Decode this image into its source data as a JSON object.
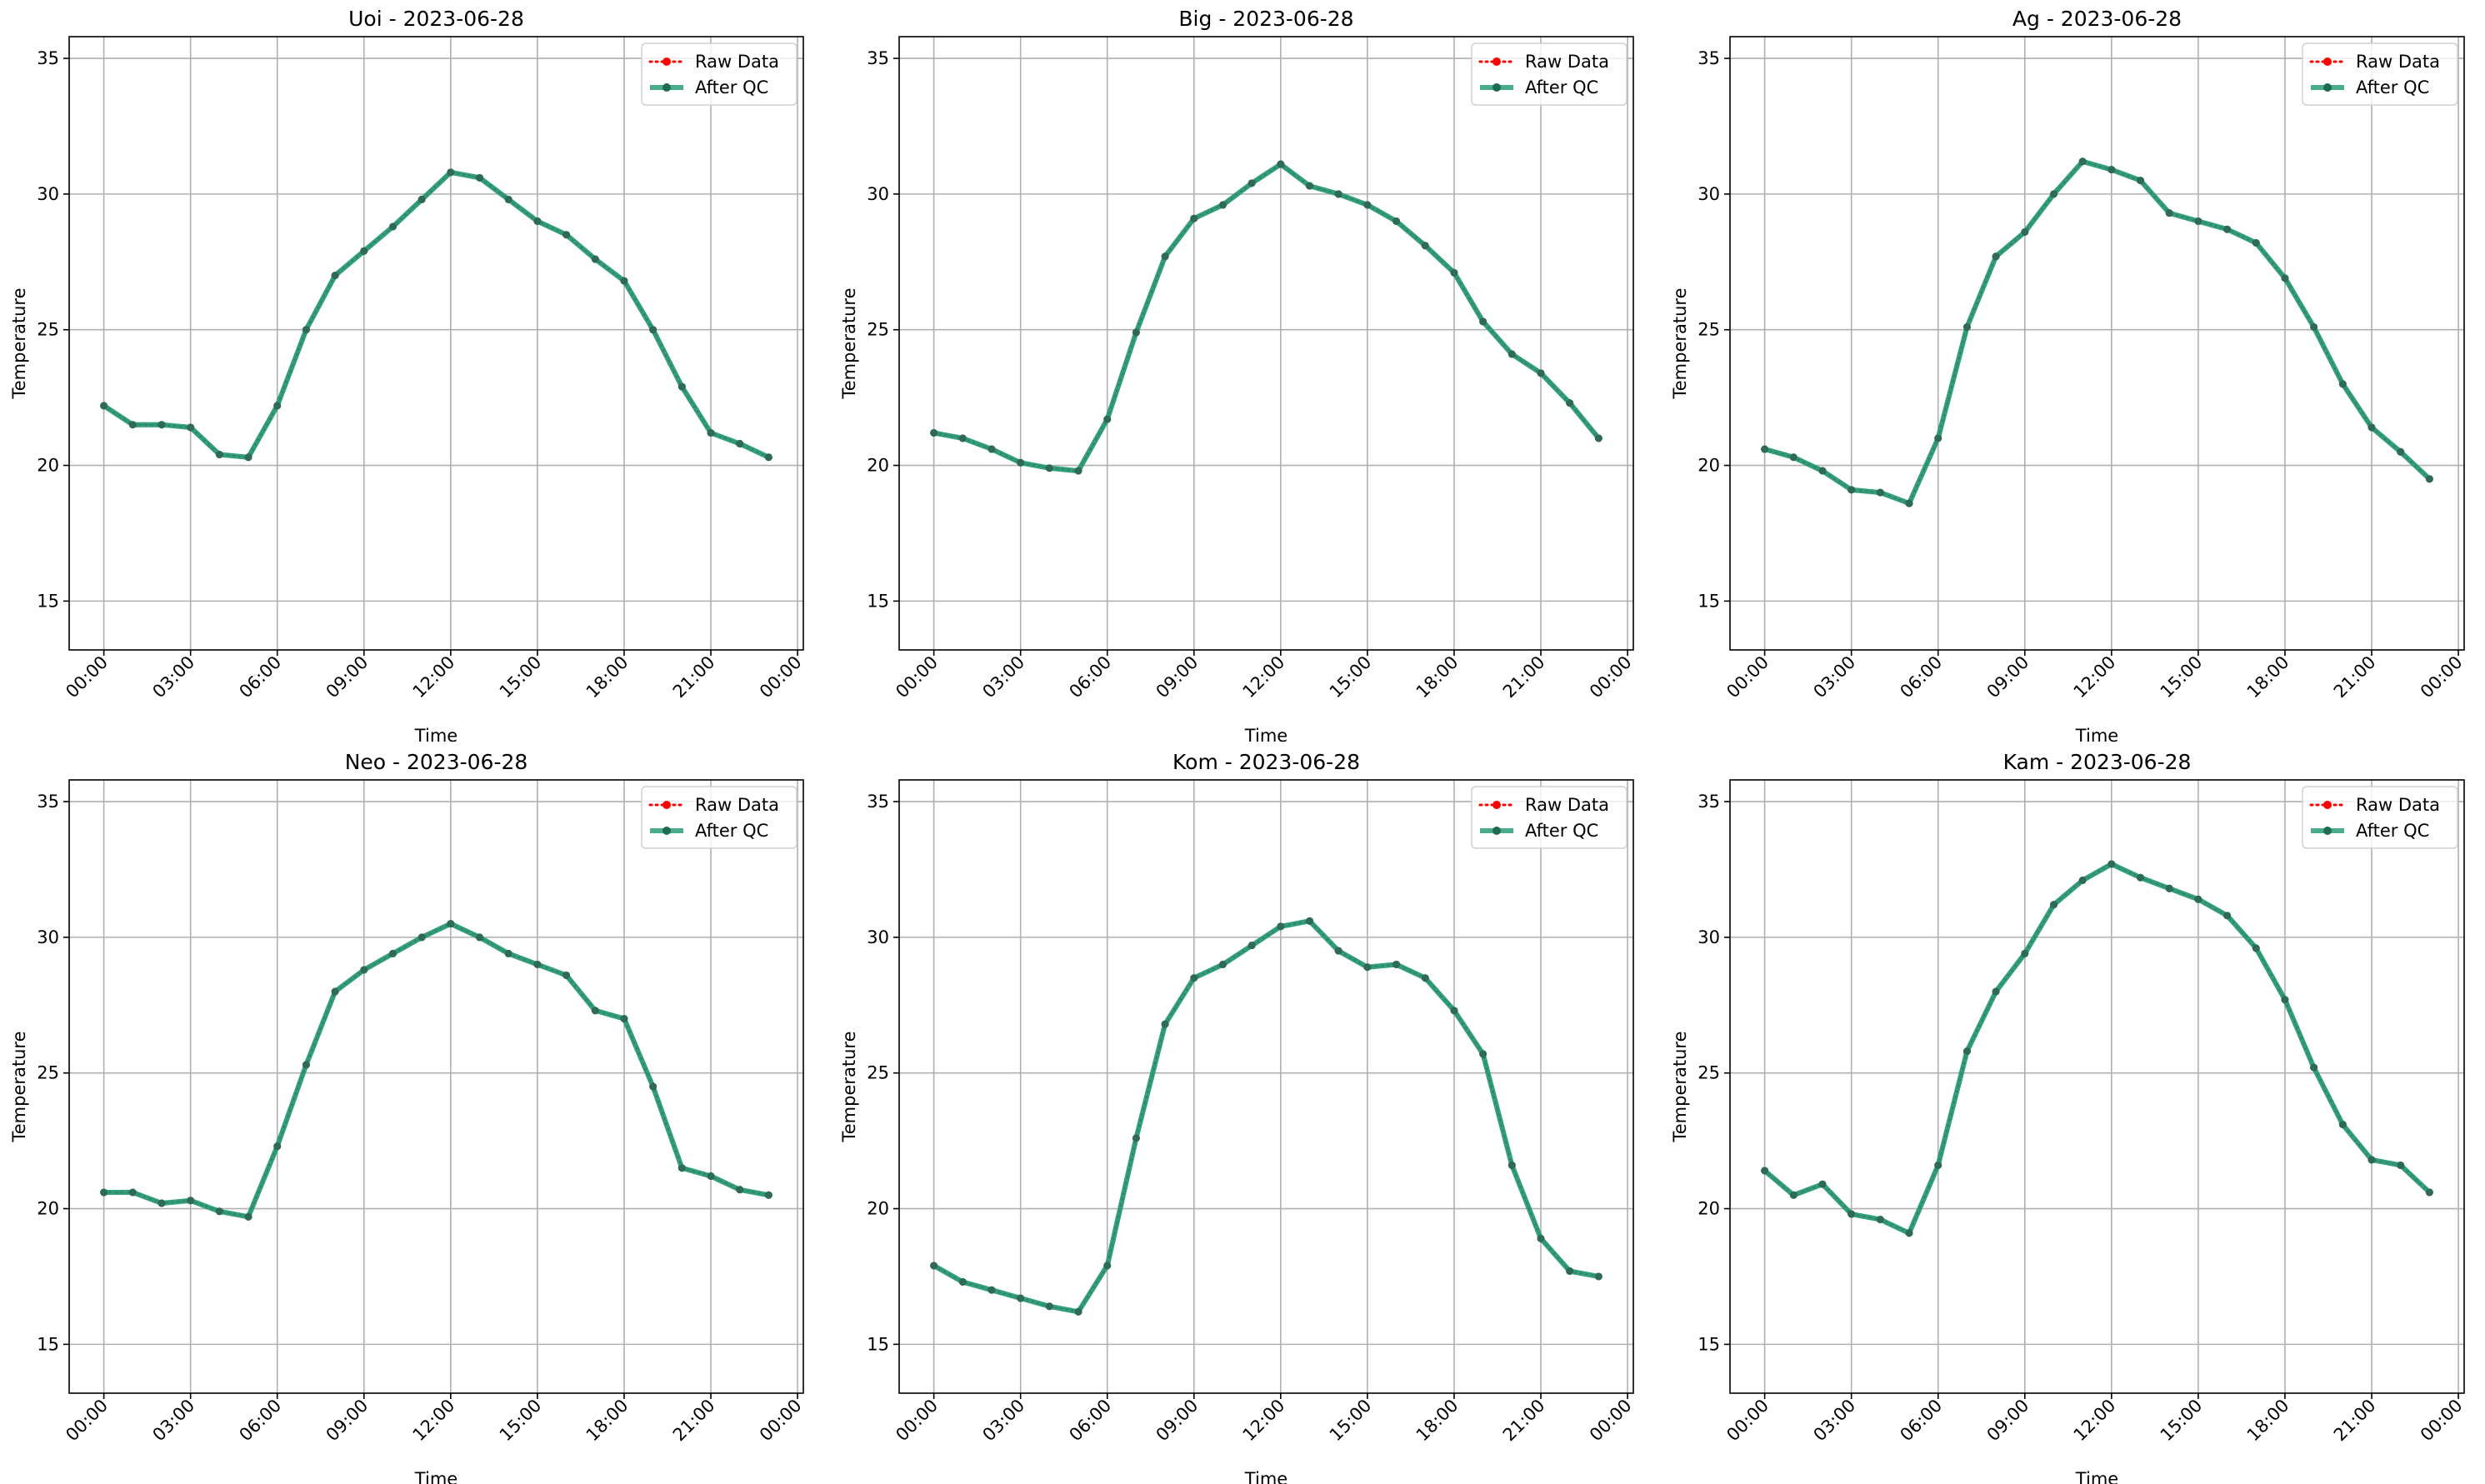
{
  "chart_data": [
    {
      "type": "line",
      "title": "Uoi - 2023-06-28",
      "xlabel": "Time",
      "ylabel": "Temperature",
      "x_ticks": [
        "00:00",
        "03:00",
        "06:00",
        "09:00",
        "12:00",
        "15:00",
        "18:00",
        "21:00",
        "00:00"
      ],
      "y_ticks": [
        15,
        20,
        25,
        30,
        35
      ],
      "ylim": [
        13.2,
        35.8
      ],
      "hours": [
        0,
        1,
        2,
        3,
        4,
        5,
        6,
        7,
        8,
        9,
        10,
        11,
        12,
        13,
        14,
        15,
        16,
        17,
        18,
        19,
        20,
        21,
        22,
        23
      ],
      "grid": true,
      "legend_position": "top-right",
      "series": [
        {
          "name": "Raw Data",
          "color": "#ff0000",
          "style": "dotted-markers",
          "values": [
            22.2,
            21.5,
            21.5,
            21.4,
            20.4,
            20.3,
            22.2,
            25.0,
            27.0,
            27.9,
            28.8,
            29.8,
            30.8,
            30.6,
            29.8,
            29.0,
            28.5,
            27.6,
            26.8,
            25.0,
            22.9,
            21.2,
            20.8,
            20.3
          ]
        },
        {
          "name": "After QC",
          "color": "#2a9d78",
          "style": "solid-markers",
          "values": [
            22.2,
            21.5,
            21.5,
            21.4,
            20.4,
            20.3,
            22.2,
            25.0,
            27.0,
            27.9,
            28.8,
            29.8,
            30.8,
            30.6,
            29.8,
            29.0,
            28.5,
            27.6,
            26.8,
            25.0,
            22.9,
            21.2,
            20.8,
            20.3
          ]
        }
      ]
    },
    {
      "type": "line",
      "title": "Big - 2023-06-28",
      "xlabel": "Time",
      "ylabel": "Temperature",
      "x_ticks": [
        "00:00",
        "03:00",
        "06:00",
        "09:00",
        "12:00",
        "15:00",
        "18:00",
        "21:00",
        "00:00"
      ],
      "y_ticks": [
        15,
        20,
        25,
        30,
        35
      ],
      "ylim": [
        13.2,
        35.8
      ],
      "hours": [
        0,
        1,
        2,
        3,
        4,
        5,
        6,
        7,
        8,
        9,
        10,
        11,
        12,
        13,
        14,
        15,
        16,
        17,
        18,
        19,
        20,
        21,
        22,
        23
      ],
      "grid": true,
      "legend_position": "top-right",
      "series": [
        {
          "name": "Raw Data",
          "color": "#ff0000",
          "style": "dotted-markers",
          "values": [
            21.2,
            21.0,
            20.6,
            20.1,
            19.9,
            19.8,
            21.7,
            24.9,
            27.7,
            29.1,
            29.6,
            30.4,
            31.1,
            30.3,
            30.0,
            29.6,
            29.0,
            28.1,
            27.1,
            25.3,
            24.1,
            23.4,
            22.3,
            21.0
          ]
        },
        {
          "name": "After QC",
          "color": "#2a9d78",
          "style": "solid-markers",
          "values": [
            21.2,
            21.0,
            20.6,
            20.1,
            19.9,
            19.8,
            21.7,
            24.9,
            27.7,
            29.1,
            29.6,
            30.4,
            31.1,
            30.3,
            30.0,
            29.6,
            29.0,
            28.1,
            27.1,
            25.3,
            24.1,
            23.4,
            22.3,
            21.0
          ]
        }
      ]
    },
    {
      "type": "line",
      "title": "Ag - 2023-06-28",
      "xlabel": "Time",
      "ylabel": "Temperature",
      "x_ticks": [
        "00:00",
        "03:00",
        "06:00",
        "09:00",
        "12:00",
        "15:00",
        "18:00",
        "21:00",
        "00:00"
      ],
      "y_ticks": [
        15,
        20,
        25,
        30,
        35
      ],
      "ylim": [
        13.2,
        35.8
      ],
      "hours": [
        0,
        1,
        2,
        3,
        4,
        5,
        6,
        7,
        8,
        9,
        10,
        11,
        12,
        13,
        14,
        15,
        16,
        17,
        18,
        19,
        20,
        21,
        22,
        23
      ],
      "grid": true,
      "legend_position": "top-right",
      "series": [
        {
          "name": "Raw Data",
          "color": "#ff0000",
          "style": "dotted-markers",
          "values": [
            20.6,
            20.3,
            19.8,
            19.1,
            19.0,
            18.6,
            21.0,
            25.1,
            27.7,
            28.6,
            30.0,
            31.2,
            30.9,
            30.5,
            29.3,
            29.0,
            28.7,
            28.2,
            26.9,
            25.1,
            23.0,
            21.4,
            20.5,
            19.5
          ]
        },
        {
          "name": "After QC",
          "color": "#2a9d78",
          "style": "solid-markers",
          "values": [
            20.6,
            20.3,
            19.8,
            19.1,
            19.0,
            18.6,
            21.0,
            25.1,
            27.7,
            28.6,
            30.0,
            31.2,
            30.9,
            30.5,
            29.3,
            29.0,
            28.7,
            28.2,
            26.9,
            25.1,
            23.0,
            21.4,
            20.5,
            19.5
          ]
        }
      ]
    },
    {
      "type": "line",
      "title": "Neo - 2023-06-28",
      "xlabel": "Time",
      "ylabel": "Temperature",
      "x_ticks": [
        "00:00",
        "03:00",
        "06:00",
        "09:00",
        "12:00",
        "15:00",
        "18:00",
        "21:00",
        "00:00"
      ],
      "y_ticks": [
        15,
        20,
        25,
        30,
        35
      ],
      "ylim": [
        13.2,
        35.8
      ],
      "hours": [
        0,
        1,
        2,
        3,
        4,
        5,
        6,
        7,
        8,
        9,
        10,
        11,
        12,
        13,
        14,
        15,
        16,
        17,
        18,
        19,
        20,
        21,
        22,
        23
      ],
      "grid": true,
      "legend_position": "top-right",
      "series": [
        {
          "name": "Raw Data",
          "color": "#ff0000",
          "style": "dotted-markers",
          "values": [
            20.6,
            20.6,
            20.2,
            20.3,
            19.9,
            19.7,
            22.3,
            25.3,
            28.0,
            28.8,
            29.4,
            30.0,
            30.5,
            30.0,
            29.4,
            29.0,
            28.6,
            27.3,
            27.0,
            24.5,
            21.5,
            21.2,
            20.7,
            20.5
          ]
        },
        {
          "name": "After QC",
          "color": "#2a9d78",
          "style": "solid-markers",
          "values": [
            20.6,
            20.6,
            20.2,
            20.3,
            19.9,
            19.7,
            22.3,
            25.3,
            28.0,
            28.8,
            29.4,
            30.0,
            30.5,
            30.0,
            29.4,
            29.0,
            28.6,
            27.3,
            27.0,
            24.5,
            21.5,
            21.2,
            20.7,
            20.5
          ]
        }
      ]
    },
    {
      "type": "line",
      "title": "Kom - 2023-06-28",
      "xlabel": "Time",
      "ylabel": "Temperature",
      "x_ticks": [
        "00:00",
        "03:00",
        "06:00",
        "09:00",
        "12:00",
        "15:00",
        "18:00",
        "21:00",
        "00:00"
      ],
      "y_ticks": [
        15,
        20,
        25,
        30,
        35
      ],
      "ylim": [
        13.2,
        35.8
      ],
      "hours": [
        0,
        1,
        2,
        3,
        4,
        5,
        6,
        7,
        8,
        9,
        10,
        11,
        12,
        13,
        14,
        15,
        16,
        17,
        18,
        19,
        20,
        21,
        22,
        23
      ],
      "grid": true,
      "legend_position": "top-right",
      "series": [
        {
          "name": "Raw Data",
          "color": "#ff0000",
          "style": "dotted-markers",
          "values": [
            17.9,
            17.3,
            17.0,
            16.7,
            16.4,
            16.2,
            17.9,
            22.6,
            26.8,
            28.5,
            29.0,
            29.7,
            30.4,
            30.6,
            29.5,
            28.9,
            29.0,
            28.5,
            27.3,
            25.7,
            21.6,
            18.9,
            17.7,
            17.5
          ]
        },
        {
          "name": "After QC",
          "color": "#2a9d78",
          "style": "solid-markers",
          "values": [
            17.9,
            17.3,
            17.0,
            16.7,
            16.4,
            16.2,
            17.9,
            22.6,
            26.8,
            28.5,
            29.0,
            29.7,
            30.4,
            30.6,
            29.5,
            28.9,
            29.0,
            28.5,
            27.3,
            25.7,
            21.6,
            18.9,
            17.7,
            17.5
          ]
        }
      ]
    },
    {
      "type": "line",
      "title": "Kam - 2023-06-28",
      "xlabel": "Time",
      "ylabel": "Temperature",
      "x_ticks": [
        "00:00",
        "03:00",
        "06:00",
        "09:00",
        "12:00",
        "15:00",
        "18:00",
        "21:00",
        "00:00"
      ],
      "y_ticks": [
        15,
        20,
        25,
        30,
        35
      ],
      "ylim": [
        13.2,
        35.8
      ],
      "hours": [
        0,
        1,
        2,
        3,
        4,
        5,
        6,
        7,
        8,
        9,
        10,
        11,
        12,
        13,
        14,
        15,
        16,
        17,
        18,
        19,
        20,
        21,
        22,
        23
      ],
      "grid": true,
      "legend_position": "top-right",
      "series": [
        {
          "name": "Raw Data",
          "color": "#ff0000",
          "style": "dotted-markers",
          "values": [
            21.4,
            20.5,
            20.9,
            19.8,
            19.6,
            19.1,
            21.6,
            25.8,
            28.0,
            29.4,
            31.2,
            32.1,
            32.7,
            32.2,
            31.8,
            31.4,
            30.8,
            29.6,
            27.7,
            25.2,
            23.1,
            21.8,
            21.6,
            20.6
          ]
        },
        {
          "name": "After QC",
          "color": "#2a9d78",
          "style": "solid-markers",
          "values": [
            21.4,
            20.5,
            20.9,
            19.8,
            19.6,
            19.1,
            21.6,
            25.8,
            28.0,
            29.4,
            31.2,
            32.1,
            32.7,
            32.2,
            31.8,
            31.4,
            30.8,
            29.6,
            27.7,
            25.2,
            23.1,
            21.8,
            21.6,
            20.6
          ]
        }
      ]
    }
  ]
}
